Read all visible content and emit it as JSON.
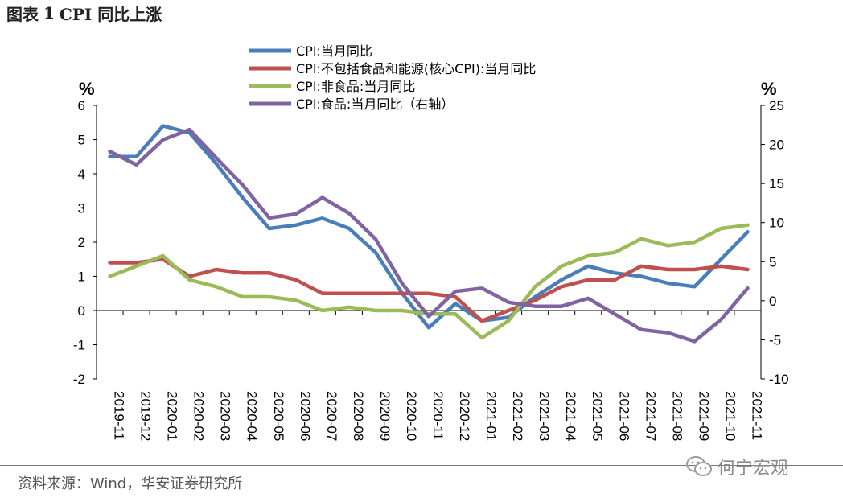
{
  "header": {
    "figure_label": "图表",
    "figure_number": "1",
    "title": "CPI 同比上涨"
  },
  "footer": {
    "source": "资料来源：Wind，华安证券研究所"
  },
  "watermark": {
    "text": "何宁宏观",
    "icon": "wechat-icon"
  },
  "colors": {
    "cpi": "#4a7ebb",
    "core": "#c0504d",
    "nonfood": "#9bbb59",
    "food": "#8064a2"
  },
  "chart_data": {
    "type": "line",
    "title": "CPI 同比上涨",
    "categories": [
      "2019-11",
      "2019-12",
      "2020-01",
      "2020-02",
      "2020-03",
      "2020-04",
      "2020-05",
      "2020-06",
      "2020-07",
      "2020-08",
      "2020-09",
      "2020-10",
      "2020-11",
      "2020-12",
      "2021-01",
      "2021-02",
      "2021-03",
      "2021-04",
      "2021-05",
      "2021-06",
      "2021-07",
      "2021-08",
      "2021-09",
      "2021-10",
      "2021-11"
    ],
    "y_left": {
      "unit": "%",
      "min": -2,
      "max": 6,
      "ticks": [
        "-2",
        "-1",
        "0",
        "1",
        "2",
        "3",
        "4",
        "5",
        "6"
      ]
    },
    "y_right": {
      "unit": "%",
      "min": -10,
      "max": 25,
      "ticks": [
        "-10",
        "-5",
        "0",
        "5",
        "10",
        "15",
        "20",
        "25"
      ]
    },
    "series": [
      {
        "name": "CPI:当月同比",
        "axis": "left",
        "color_key": "cpi",
        "values": [
          4.5,
          4.5,
          5.4,
          5.2,
          4.3,
          3.3,
          2.4,
          2.5,
          2.7,
          2.4,
          1.7,
          0.5,
          -0.5,
          0.2,
          -0.3,
          -0.2,
          0.4,
          0.9,
          1.3,
          1.1,
          1.0,
          0.8,
          0.7,
          1.5,
          2.3
        ]
      },
      {
        "name": "CPI:不包括食品和能源(核心CPI):当月同比",
        "axis": "left",
        "color_key": "core",
        "values": [
          1.4,
          1.4,
          1.5,
          1.0,
          1.2,
          1.1,
          1.1,
          0.9,
          0.5,
          0.5,
          0.5,
          0.5,
          0.5,
          0.4,
          -0.3,
          0.0,
          0.3,
          0.7,
          0.9,
          0.9,
          1.3,
          1.2,
          1.2,
          1.3,
          1.2
        ]
      },
      {
        "name": "CPI:非食品:当月同比",
        "axis": "left",
        "color_key": "nonfood",
        "values": [
          1.0,
          1.3,
          1.6,
          0.9,
          0.7,
          0.4,
          0.4,
          0.3,
          0.0,
          0.1,
          0.0,
          0.0,
          -0.1,
          -0.1,
          -0.8,
          -0.3,
          0.7,
          1.3,
          1.6,
          1.7,
          2.1,
          1.9,
          2.0,
          2.4,
          2.5
        ]
      },
      {
        "name": "CPI:食品:当月同比（右轴）",
        "axis": "right",
        "color_key": "food",
        "values": [
          19.1,
          17.4,
          20.6,
          21.9,
          18.3,
          14.8,
          10.6,
          11.1,
          13.2,
          11.2,
          7.9,
          2.2,
          -2.0,
          1.2,
          1.6,
          -0.2,
          -0.7,
          -0.7,
          0.3,
          -1.7,
          -3.7,
          -4.1,
          -5.2,
          -2.4,
          1.6
        ]
      }
    ]
  }
}
